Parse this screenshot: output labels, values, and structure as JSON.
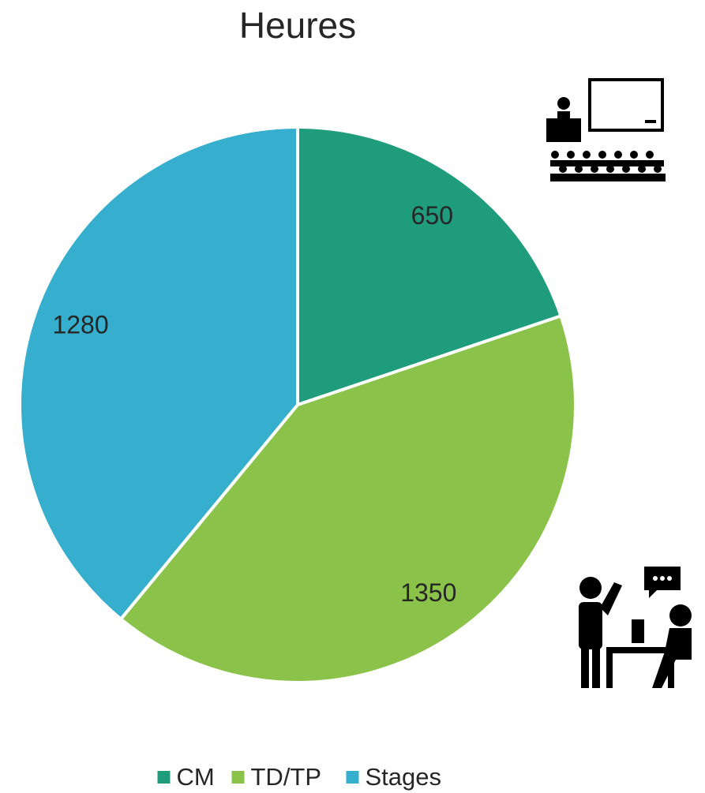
{
  "chart_data": {
    "type": "pie",
    "title": "Heures",
    "categories": [
      "CM",
      "TD/TP",
      "Stages"
    ],
    "values": [
      650,
      1350,
      1280
    ],
    "colors": [
      "#1f9c7c",
      "#8bc34a",
      "#36aece"
    ],
    "legend": "bottom"
  }
}
